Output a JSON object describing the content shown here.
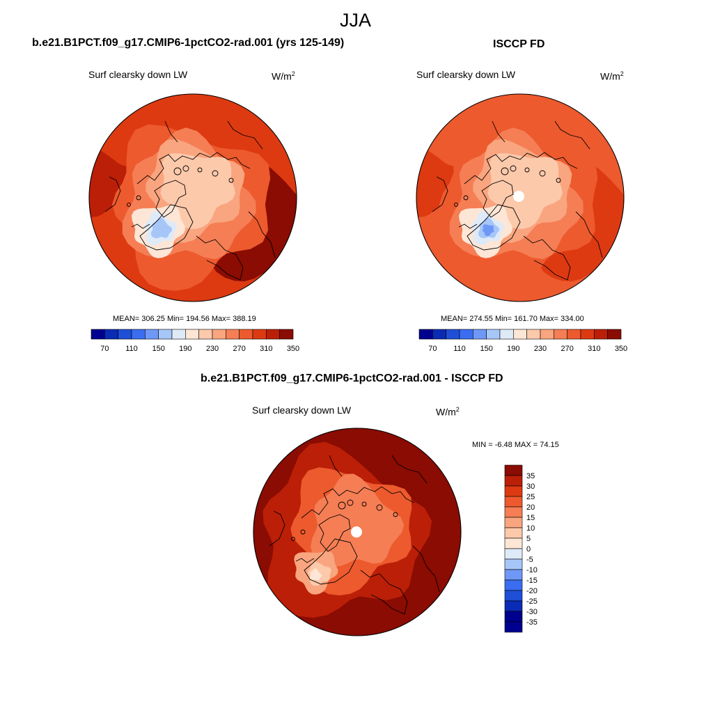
{
  "figure": {
    "title": "JJA"
  },
  "panels": [
    {
      "id": "model",
      "title": "b.e21.B1PCT.f09_g17.CMIP6-1pctCO2-rad.001 (yrs 125-149)",
      "variable": "Surf clearsky down LW",
      "units_base": "W/m",
      "units_exp": "2",
      "stats": "MEAN= 306.25  Min= 194.56  Max= 388.19",
      "colorbar_ticks": [
        "70",
        "110",
        "150",
        "190",
        "230",
        "270",
        "310",
        "350"
      ]
    },
    {
      "id": "obs",
      "title": "ISCCP FD",
      "variable": "Surf clearsky down LW",
      "units_base": "W/m",
      "units_exp": "2",
      "stats": "MEAN= 274.55  Min= 161.70  Max= 334.00",
      "colorbar_ticks": [
        "70",
        "110",
        "150",
        "190",
        "230",
        "270",
        "310",
        "350"
      ]
    },
    {
      "id": "diff",
      "title": "b.e21.B1PCT.f09_g17.CMIP6-1pctCO2-rad.001 - ISCCP FD",
      "variable": "Surf clearsky down LW",
      "units_base": "W/m",
      "units_exp": "2",
      "stats": "MIN =  -6.48 MAX =  74.15",
      "colorbar_ticks": [
        "35",
        "30",
        "25",
        "20",
        "15",
        "10",
        "5",
        "0",
        "-5",
        "-10",
        "-15",
        "-20",
        "-25",
        "-30",
        "-35"
      ]
    }
  ],
  "colors": {
    "abs_scale": [
      "#00008f",
      "#0a2bb4",
      "#1f4fd6",
      "#3a6df0",
      "#6f98f6",
      "#a7c6f8",
      "#dfeaf8",
      "#fde6d6",
      "#fcc9ab",
      "#f9a57f",
      "#f57e55",
      "#ed5a2e",
      "#dd3a12",
      "#bb1f07",
      "#8a0c02"
    ],
    "diff_scale": [
      "#00008f",
      "#0a2bb4",
      "#1f4fd6",
      "#3a6df0",
      "#6f98f6",
      "#a7c6f8",
      "#dfeaf8",
      "#fde6d6",
      "#fcc9ab",
      "#f9a57f",
      "#f57e55",
      "#ed5a2e",
      "#dd3a12",
      "#bb1f07",
      "#8a0c02"
    ],
    "coast": "#000000"
  }
}
